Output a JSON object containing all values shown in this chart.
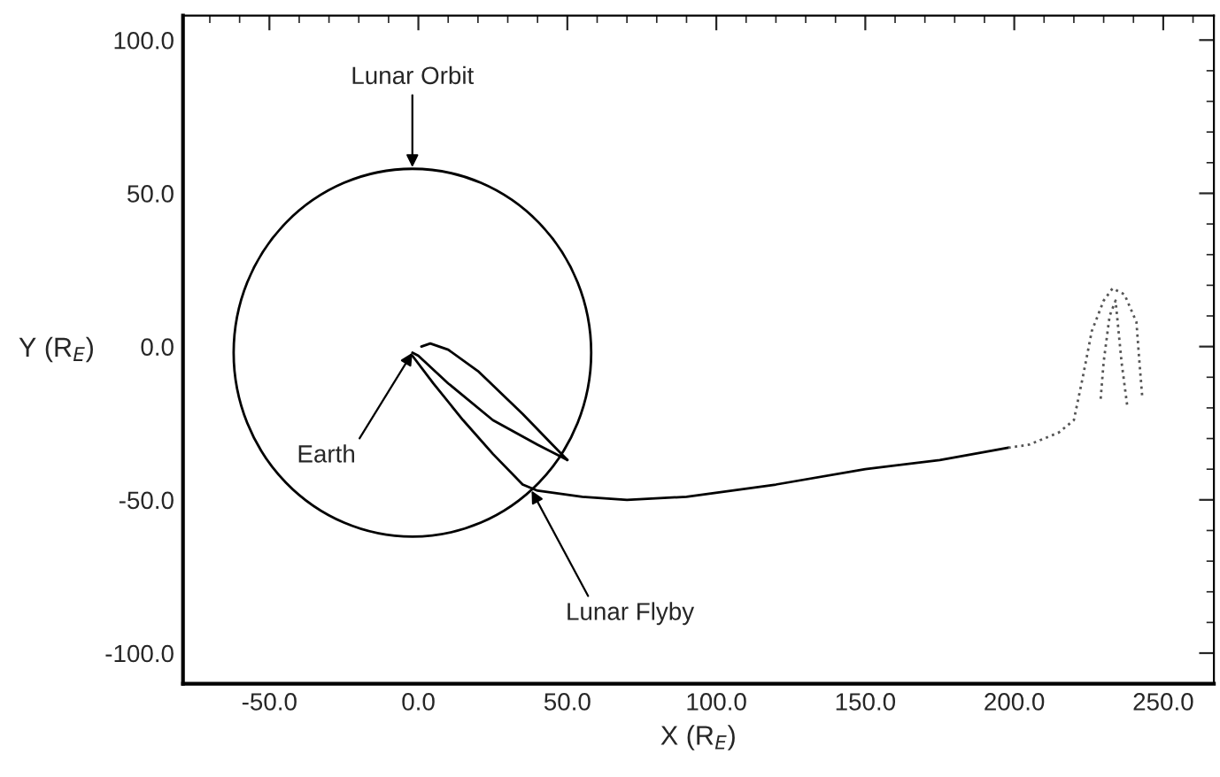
{
  "chart_data": {
    "type": "line",
    "xlabel": "X (R$_{E}$)",
    "ylabel": "Y (R$_{E}$)",
    "xlim": [
      -79,
      267
    ],
    "ylim": [
      -110,
      108
    ],
    "xticks": [
      {
        "value": -50,
        "label": "-50.0"
      },
      {
        "value": 0,
        "label": "0.0"
      },
      {
        "value": 50,
        "label": "50.0"
      },
      {
        "value": 100,
        "label": "100.0"
      },
      {
        "value": 150,
        "label": "150.0"
      },
      {
        "value": 200,
        "label": "200.0"
      },
      {
        "value": 250,
        "label": "250.0"
      }
    ],
    "yticks": [
      {
        "value": -100,
        "label": "-100.0"
      },
      {
        "value": -50,
        "label": "-50.0"
      },
      {
        "value": 0,
        "label": "0.0"
      },
      {
        "value": 50,
        "label": "50.0"
      },
      {
        "value": 100,
        "label": "100.0"
      }
    ],
    "grid": false,
    "legend": false,
    "series": [
      {
        "color": "#000000",
        "line_style": "solid",
        "x": [
          -2,
          0,
          10,
          25,
          40,
          48,
          50
        ],
        "values": [
          -2,
          -3,
          -12,
          -24,
          -32,
          -36,
          -37
        ]
      },
      {
        "color": "#000000",
        "line_style": "solid",
        "x": [
          1,
          4,
          10,
          20,
          35,
          45,
          50
        ],
        "values": [
          0,
          1,
          -1,
          -8,
          -22,
          -32,
          -37
        ]
      },
      {
        "color": "#000000",
        "line_style": "solid",
        "x": [
          -2,
          5,
          15,
          25,
          35,
          40,
          55,
          70,
          90,
          120,
          150,
          175,
          198
        ],
        "values": [
          -3,
          -12,
          -24,
          -35,
          -45,
          -47,
          -49,
          -50,
          -49,
          -45,
          -40,
          -37,
          -33
        ]
      },
      {
        "color": "#555555",
        "line_style": "dotted",
        "x": [
          198,
          205,
          215,
          220,
          223,
          226,
          230,
          233,
          237,
          241,
          242,
          243
        ],
        "values": [
          -33,
          -32,
          -28,
          -24,
          -10,
          5,
          15,
          19,
          17,
          8,
          -5,
          -17
        ]
      },
      {
        "color": "#555555",
        "line_style": "dotted",
        "x": [
          229,
          230,
          232,
          234,
          236,
          238
        ],
        "values": [
          -17,
          -5,
          10,
          15,
          -5,
          -20
        ]
      }
    ],
    "annotations": [
      "Lunar Orbit",
      {
        "text": "Earth",
        "x": -2,
        "y": -2
      },
      {
        "text": "Lunar Flyby",
        "x": 38,
        "y": -47
      }
    ]
  }
}
